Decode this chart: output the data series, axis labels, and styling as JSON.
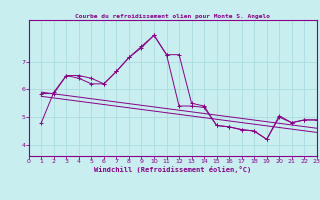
{
  "title": "Courbe du refroidissement olien pour Monte S. Angelo",
  "xlabel": "Windchill (Refroidissement éolien,°C)",
  "bg_color": "#c8eef0",
  "line_color": "#880088",
  "grid_color": "#a8dce0",
  "xlim": [
    0,
    23
  ],
  "ylim": [
    3.6,
    8.5
  ],
  "yticks": [
    4,
    5,
    6,
    7
  ],
  "xticks": [
    0,
    1,
    2,
    3,
    4,
    5,
    6,
    7,
    8,
    9,
    10,
    11,
    12,
    13,
    14,
    15,
    16,
    17,
    18,
    19,
    20,
    21,
    22,
    23
  ],
  "series1_x": [
    1,
    2,
    3,
    4,
    5,
    6,
    7,
    8,
    9,
    10,
    11,
    12,
    13,
    14,
    15,
    16,
    17,
    18,
    19,
    20,
    21,
    22,
    23
  ],
  "series1_y": [
    4.8,
    5.9,
    6.5,
    6.5,
    6.4,
    6.2,
    6.65,
    7.15,
    7.55,
    7.95,
    7.25,
    7.25,
    5.5,
    5.4,
    4.7,
    4.65,
    4.55,
    4.5,
    4.2,
    5.05,
    4.8,
    4.9,
    4.9
  ],
  "series2_x": [
    1,
    2,
    3,
    4,
    5,
    6,
    7,
    8,
    9,
    10,
    11,
    12,
    13,
    14,
    15,
    16,
    17,
    18,
    19,
    20,
    21,
    22,
    23
  ],
  "series2_y": [
    5.85,
    5.85,
    6.5,
    6.4,
    6.2,
    6.2,
    6.65,
    7.15,
    7.5,
    7.95,
    7.25,
    5.4,
    5.4,
    5.35,
    4.7,
    4.65,
    4.55,
    4.5,
    4.2,
    5.0,
    4.8,
    4.9,
    4.9
  ],
  "trend1_x": [
    1,
    23
  ],
  "trend1_y": [
    5.9,
    4.6
  ],
  "trend2_x": [
    1,
    23
  ],
  "trend2_y": [
    5.75,
    4.45
  ]
}
